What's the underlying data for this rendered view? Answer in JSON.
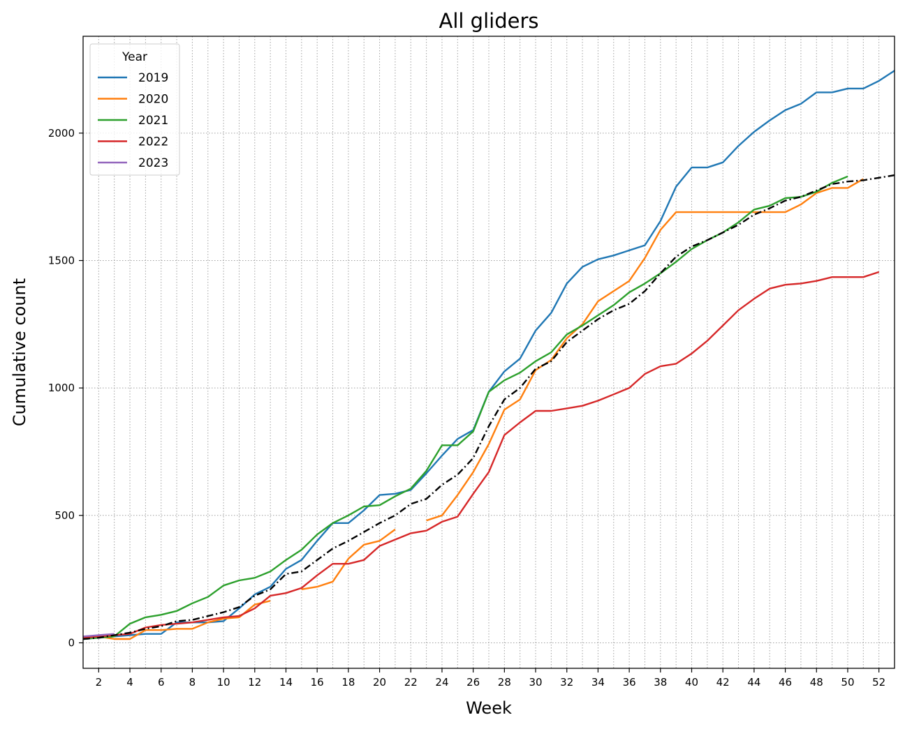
{
  "chart_data": {
    "type": "line",
    "title": "All gliders",
    "xlabel": "Week",
    "ylabel": "Cumulative count",
    "xlim": [
      1,
      53
    ],
    "ylim": [
      -100,
      2380
    ],
    "xticks": [
      2,
      4,
      6,
      8,
      10,
      12,
      14,
      16,
      18,
      20,
      22,
      24,
      26,
      28,
      30,
      32,
      34,
      36,
      38,
      40,
      42,
      44,
      46,
      48,
      50,
      52
    ],
    "yticks": [
      0,
      500,
      1000,
      1500,
      2000
    ],
    "grid": "dotted, every week on x and every 500 on y",
    "legend": {
      "title": "Year",
      "position": "top-left"
    },
    "series": [
      {
        "name": "2019",
        "color": "#1f77b4",
        "x": [
          1,
          2,
          3,
          4,
          5,
          6,
          7,
          8,
          9,
          10,
          11,
          12,
          13,
          14,
          15,
          16,
          17,
          18,
          19,
          20,
          21,
          22,
          23,
          24,
          25,
          26,
          27,
          28,
          29,
          30,
          31,
          32,
          33,
          34,
          35,
          36,
          37,
          38,
          39,
          40,
          41,
          42,
          43,
          44,
          45,
          46,
          47,
          48,
          49,
          50,
          51,
          52,
          53
        ],
        "y": [
          15,
          20,
          25,
          30,
          35,
          35,
          80,
          80,
          80,
          85,
          135,
          190,
          220,
          290,
          325,
          400,
          470,
          470,
          520,
          580,
          585,
          600,
          665,
          735,
          800,
          835,
          985,
          1065,
          1115,
          1225,
          1295,
          1410,
          1475,
          1505,
          1520,
          1540,
          1560,
          1655,
          1790,
          1865,
          1865,
          1885,
          1950,
          2005,
          2050,
          2090,
          2115,
          2160,
          2160,
          2175,
          2175,
          2205,
          2245
        ]
      },
      {
        "name": "2020",
        "color": "#ff7f0e",
        "segments": [
          {
            "x": [
              1,
              2,
              3,
              4,
              5,
              6,
              7,
              8,
              9,
              10,
              11,
              12,
              13
            ],
            "y": [
              20,
              25,
              15,
              15,
              50,
              50,
              55,
              55,
              80,
              95,
              100,
              150,
              165
            ]
          },
          {
            "x": [
              15,
              16,
              17,
              18,
              19,
              20,
              21
            ],
            "y": [
              210,
              220,
              240,
              330,
              385,
              400,
              445
            ]
          },
          {
            "x": [
              23,
              24,
              25,
              26,
              27,
              28,
              29,
              30,
              31,
              32,
              33,
              34,
              35,
              36,
              37,
              38,
              39,
              40,
              41,
              42,
              43,
              44,
              45,
              46,
              47,
              48,
              49,
              50,
              51
            ],
            "y": [
              480,
              500,
              580,
              670,
              780,
              915,
              955,
              1070,
              1110,
              1195,
              1250,
              1340,
              1380,
              1420,
              1510,
              1620,
              1690,
              1690,
              1690,
              1690,
              1690,
              1690,
              1690,
              1690,
              1720,
              1765,
              1785,
              1785,
              1820
            ]
          }
        ]
      },
      {
        "name": "2021",
        "color": "#2ca02c",
        "x": [
          1,
          2,
          3,
          4,
          5,
          6,
          7,
          8,
          9,
          10,
          11,
          12,
          13,
          14,
          15,
          16,
          17,
          18,
          19,
          20,
          21,
          22,
          23,
          24,
          25,
          26,
          27,
          28,
          29,
          30,
          31,
          32,
          33,
          34,
          35,
          36,
          37,
          38,
          39,
          40,
          41,
          42,
          43,
          44,
          45,
          46,
          47,
          48,
          49,
          50
        ],
        "y": [
          15,
          20,
          25,
          75,
          100,
          110,
          125,
          155,
          180,
          225,
          245,
          255,
          280,
          325,
          365,
          425,
          470,
          500,
          535,
          540,
          575,
          605,
          675,
          775,
          775,
          830,
          985,
          1030,
          1060,
          1105,
          1140,
          1210,
          1245,
          1285,
          1325,
          1375,
          1410,
          1450,
          1495,
          1545,
          1580,
          1610,
          1650,
          1700,
          1715,
          1745,
          1750,
          1770,
          1805,
          1830
        ]
      },
      {
        "name": "2022",
        "color": "#d62728",
        "x": [
          1,
          2,
          3,
          4,
          5,
          6,
          7,
          8,
          9,
          10,
          11,
          12,
          13,
          14,
          15,
          16,
          17,
          18,
          19,
          20,
          21,
          22,
          23,
          24,
          25,
          26,
          27,
          28,
          29,
          30,
          31,
          32,
          33,
          34,
          35,
          36,
          37,
          38,
          39,
          40,
          41,
          42,
          43,
          44,
          45,
          46,
          47,
          48,
          49,
          50,
          51,
          52
        ],
        "y": [
          20,
          25,
          30,
          35,
          60,
          70,
          75,
          80,
          90,
          100,
          105,
          135,
          185,
          195,
          215,
          265,
          310,
          310,
          325,
          380,
          405,
          430,
          440,
          475,
          495,
          585,
          670,
          815,
          865,
          910,
          910,
          920,
          930,
          950,
          975,
          1000,
          1055,
          1085,
          1095,
          1135,
          1185,
          1245,
          1305,
          1350,
          1390,
          1405,
          1410,
          1420,
          1435,
          1435,
          1435,
          1455
        ]
      },
      {
        "name": "2023",
        "color": "#9467bd",
        "x": [
          1,
          2,
          3
        ],
        "y": [
          25,
          30,
          35
        ]
      }
    ],
    "mean_line": {
      "color": "#000000",
      "style": "dash-dot",
      "x": [
        1,
        2,
        3,
        4,
        5,
        6,
        7,
        8,
        9,
        10,
        11,
        12,
        13,
        14,
        15,
        16,
        17,
        18,
        19,
        20,
        21,
        22,
        23,
        24,
        25,
        26,
        27,
        28,
        29,
        30,
        31,
        32,
        33,
        34,
        35,
        36,
        37,
        38,
        39,
        40,
        41,
        42,
        43,
        44,
        45,
        46,
        47,
        48,
        49,
        50,
        51,
        52,
        53
      ],
      "y": [
        15,
        20,
        30,
        40,
        55,
        65,
        85,
        90,
        105,
        120,
        140,
        185,
        210,
        270,
        280,
        325,
        370,
        400,
        435,
        470,
        500,
        545,
        565,
        620,
        660,
        725,
        850,
        955,
        1000,
        1075,
        1105,
        1180,
        1225,
        1270,
        1305,
        1330,
        1380,
        1450,
        1515,
        1555,
        1580,
        1610,
        1640,
        1680,
        1705,
        1735,
        1750,
        1775,
        1800,
        1810,
        1815,
        1825,
        1835
      ]
    }
  }
}
